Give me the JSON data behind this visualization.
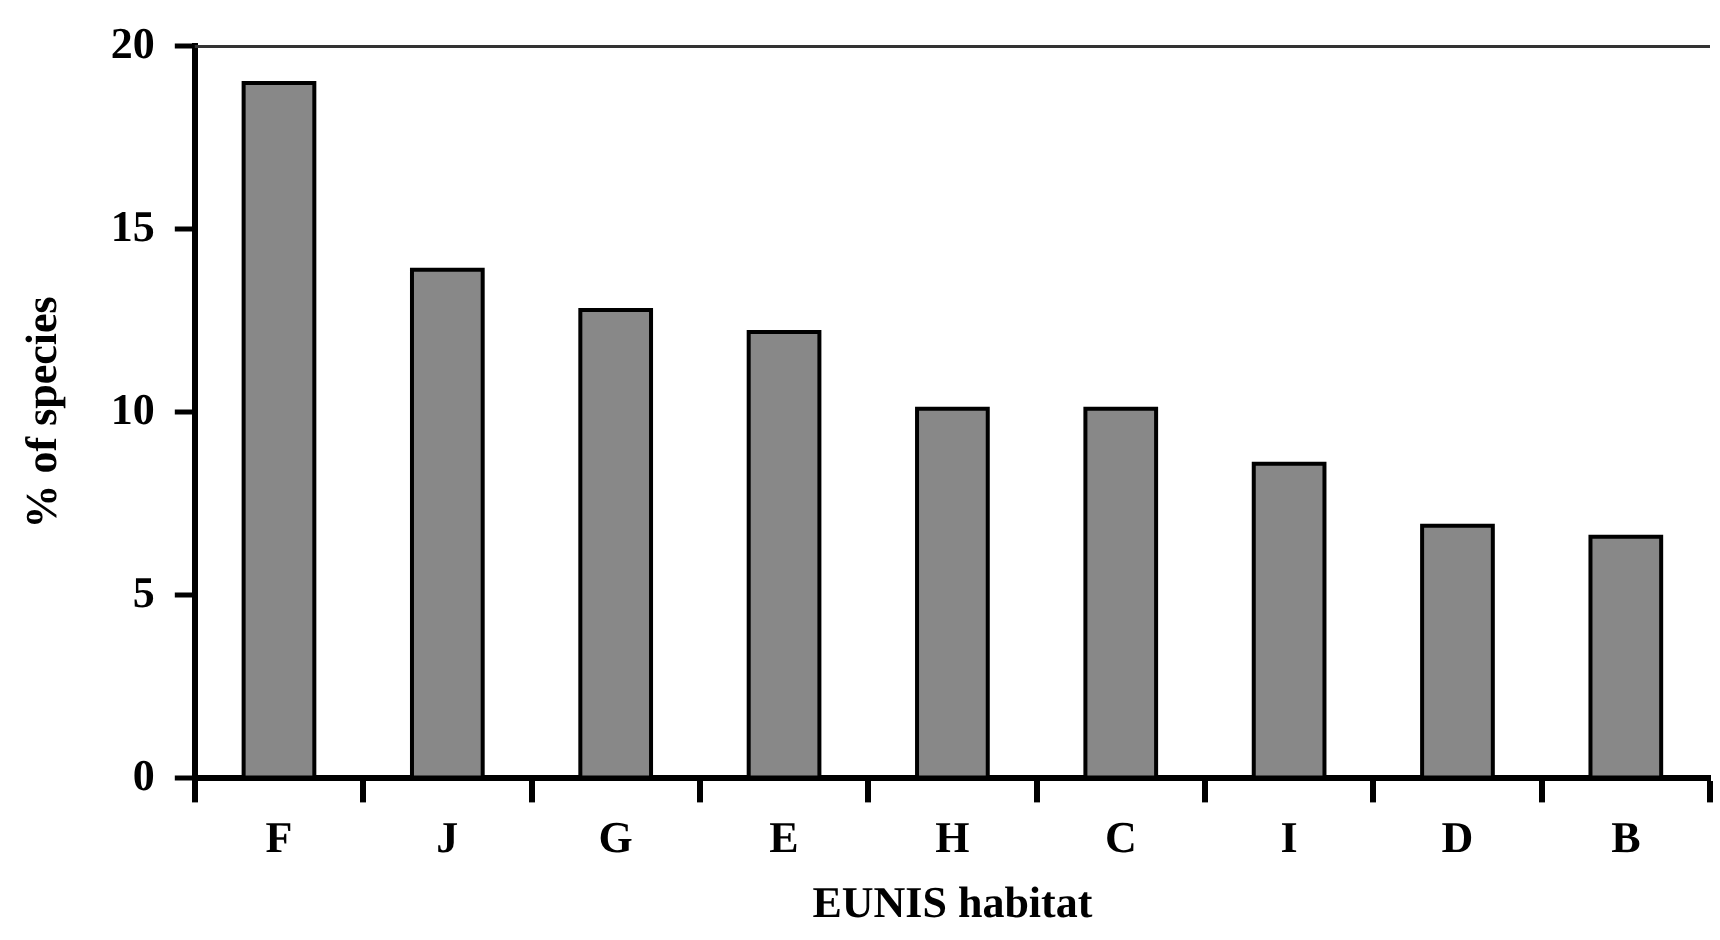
{
  "chart_data": {
    "type": "bar",
    "xlabel": "EUNIS habitat",
    "ylabel": "% of species",
    "categories": [
      "F",
      "J",
      "G",
      "E",
      "H",
      "C",
      "I",
      "D",
      "B"
    ],
    "values": [
      19.0,
      13.9,
      12.8,
      12.2,
      10.1,
      10.1,
      8.6,
      6.9,
      6.6
    ],
    "color": "#888888",
    "ylim": [
      0,
      20
    ],
    "yticks": [
      0,
      5,
      10,
      15,
      20
    ],
    "grid": false,
    "legend": false
  }
}
